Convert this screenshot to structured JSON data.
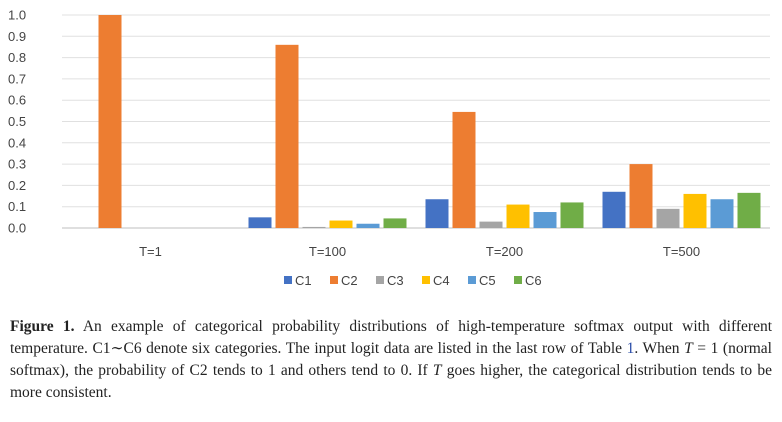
{
  "chart_data": {
    "type": "bar",
    "categories": [
      "T=1",
      "T=100",
      "T=200",
      "T=500"
    ],
    "series": [
      {
        "name": "C1",
        "color": "#4472c4",
        "values": [
          0.0,
          0.05,
          0.135,
          0.17
        ]
      },
      {
        "name": "C2",
        "color": "#ed7d31",
        "values": [
          1.0,
          0.86,
          0.545,
          0.3
        ]
      },
      {
        "name": "C3",
        "color": "#a5a5a5",
        "values": [
          0.0,
          0.005,
          0.03,
          0.09
        ]
      },
      {
        "name": "C4",
        "color": "#ffc000",
        "values": [
          0.0,
          0.035,
          0.11,
          0.16
        ]
      },
      {
        "name": "C5",
        "color": "#5b9bd5",
        "values": [
          0.0,
          0.02,
          0.075,
          0.135
        ]
      },
      {
        "name": "C6",
        "color": "#70ad47",
        "values": [
          0.0,
          0.045,
          0.12,
          0.165
        ]
      }
    ],
    "yticks": [
      "0.0",
      "0.1",
      "0.2",
      "0.3",
      "0.4",
      "0.5",
      "0.6",
      "0.7",
      "0.8",
      "0.9",
      "1.0"
    ],
    "ylim": [
      0,
      1.0
    ],
    "grid": true,
    "legend": "bottom",
    "title": "",
    "xlabel": "",
    "ylabel": ""
  },
  "caption": {
    "label": "Figure 1.",
    "text_1": " An example of categorical probability distributions of high-temperature softmax output with different temperature. C1∼C6 denote six categories. The input logit data are listed in the last row of Table ",
    "table_ref": "1",
    "text_2": ". When ",
    "t_sym_1": "T",
    "eq_1": " = 1 (normal softmax), the probability of C2 tends to 1 and others tend to 0. If ",
    "t_sym_2": "T",
    "text_3": " goes higher, the categorical distribution tends to be more consistent."
  }
}
